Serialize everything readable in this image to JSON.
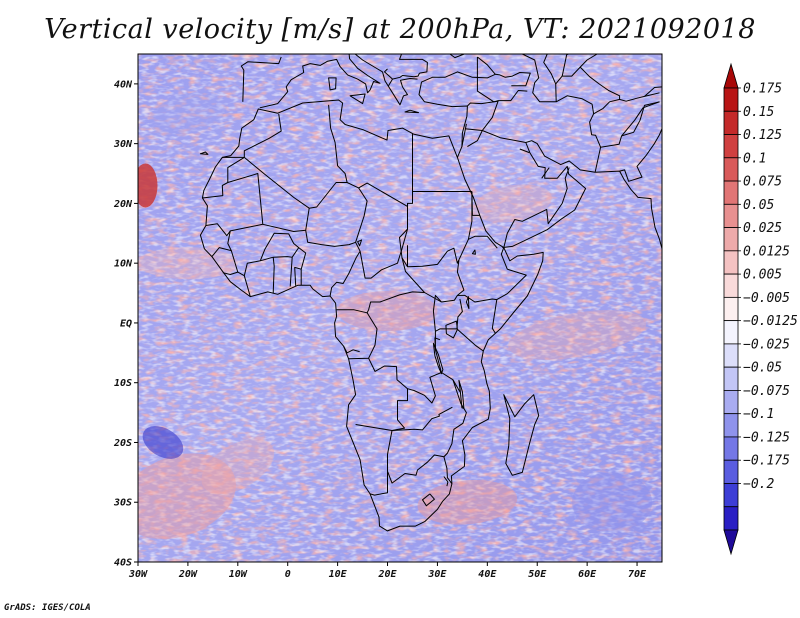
{
  "title": "Vertical velocity [m/s] at 200hPa, VT: 2021092018",
  "credit": "GrADS: IGES/COLA",
  "map": {
    "lon_range": [
      -30,
      75
    ],
    "lat_range": [
      -40,
      45
    ],
    "lon_ticks": [
      {
        "value": -30,
        "label": "30W"
      },
      {
        "value": -20,
        "label": "20W"
      },
      {
        "value": -10,
        "label": "10W"
      },
      {
        "value": 0,
        "label": "0"
      },
      {
        "value": 10,
        "label": "10E"
      },
      {
        "value": 20,
        "label": "20E"
      },
      {
        "value": 30,
        "label": "30E"
      },
      {
        "value": 40,
        "label": "40E"
      },
      {
        "value": 50,
        "label": "50E"
      },
      {
        "value": 60,
        "label": "60E"
      },
      {
        "value": 70,
        "label": "70E"
      }
    ],
    "lat_ticks": [
      {
        "value": 40,
        "label": "40N"
      },
      {
        "value": 30,
        "label": "30N"
      },
      {
        "value": 20,
        "label": "20N"
      },
      {
        "value": 10,
        "label": "10N"
      },
      {
        "value": 0,
        "label": "EQ"
      },
      {
        "value": -10,
        "label": "10S"
      },
      {
        "value": -20,
        "label": "20S"
      },
      {
        "value": -30,
        "label": "30S"
      },
      {
        "value": -40,
        "label": "40S"
      }
    ]
  },
  "colorbar": {
    "colors": [
      "#1f0a99",
      "#2a1fc4",
      "#3d3ed6",
      "#5a5de0",
      "#7477e6",
      "#8f93ec",
      "#a9acf1",
      "#c3c6f6",
      "#dcdefa",
      "#f4f4fe",
      "#fdf0f0",
      "#f9dada",
      "#f4c2c2",
      "#eeaaaa",
      "#e89090",
      "#e17575",
      "#d95a5a",
      "#d04040",
      "#c42a2a",
      "#b81515",
      "#a80808"
    ],
    "labels": [
      "0.175",
      "0.15",
      "0.125",
      "0.1",
      "0.075",
      "0.05",
      "0.025",
      "0.0125",
      "0.005",
      "−0.005",
      "−0.0125",
      "−0.025",
      "−0.05",
      "−0.075",
      "−0.1",
      "−0.125",
      "−0.175",
      "−0.2"
    ]
  },
  "colors": {
    "background": "#ffffff",
    "coastline": "#000000"
  }
}
